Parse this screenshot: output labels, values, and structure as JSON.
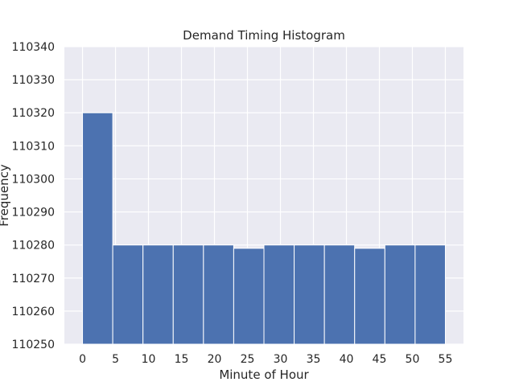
{
  "chart_data": {
    "type": "bar",
    "title": "Demand Timing Histogram",
    "xlabel": "Minute of Hour",
    "ylabel": "Frequency",
    "bin_edges": [
      0,
      4.5833,
      9.1667,
      13.75,
      18.3333,
      22.9167,
      27.5,
      32.0833,
      36.6667,
      41.25,
      45.8333,
      50.4167,
      55
    ],
    "values": [
      110320,
      110280,
      110280,
      110280,
      110280,
      110279,
      110280,
      110280,
      110280,
      110279,
      110280,
      110280
    ],
    "xticks": [
      0,
      5,
      10,
      15,
      20,
      25,
      30,
      35,
      40,
      45,
      50,
      55
    ],
    "yticks": [
      110250,
      110260,
      110270,
      110280,
      110290,
      110300,
      110310,
      110320,
      110330,
      110340
    ],
    "xlim": [
      -2.75,
      57.75
    ],
    "ylim": [
      110250,
      110340
    ],
    "grid": true,
    "colors": {
      "background": "#eaeaf2",
      "bar": "#4c72b0",
      "grid": "#ffffff",
      "text": "#262626"
    }
  }
}
